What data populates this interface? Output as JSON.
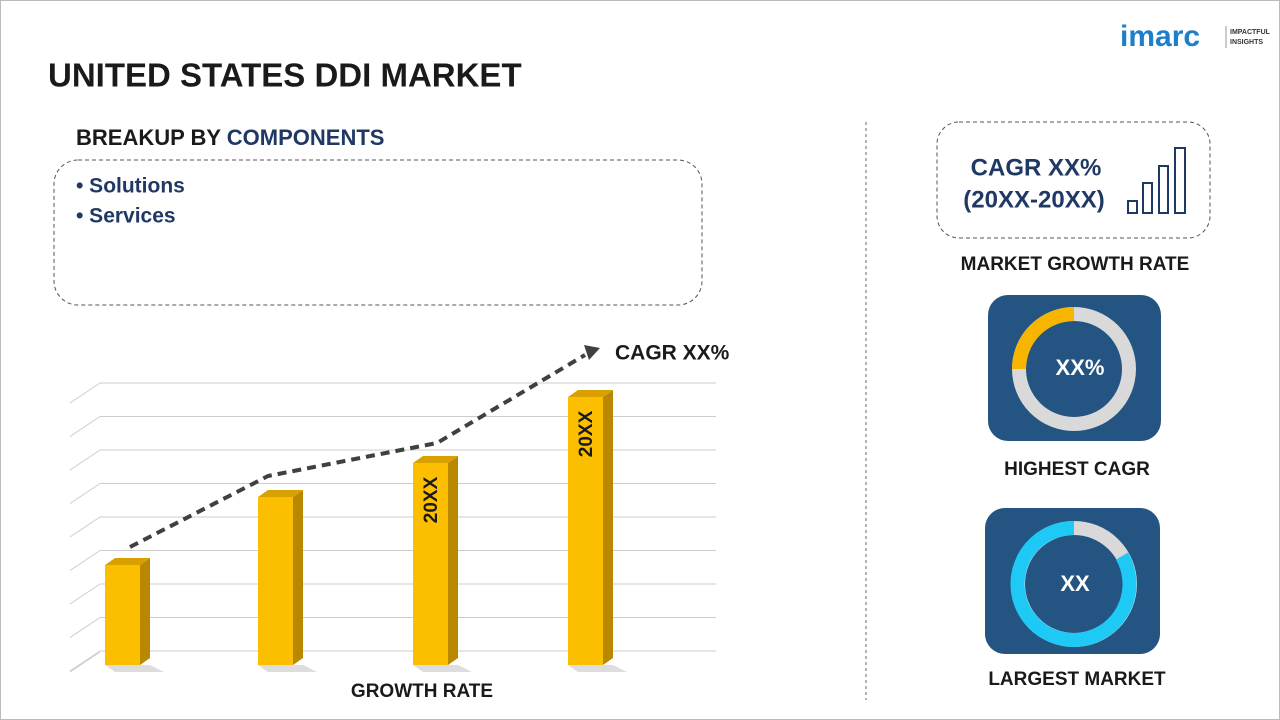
{
  "logo": {
    "name": "imarc",
    "tagline_1": "IMPACTFUL",
    "tagline_2": "INSIGHTS"
  },
  "header": {
    "title": "UNITED STATES DDI MARKET"
  },
  "breakup": {
    "prefix": "BREAKUP BY",
    "segment": "COMPONENTS",
    "items": [
      "• Solutions",
      "• Services"
    ]
  },
  "growth_chart": {
    "cagr": "CAGR XX%",
    "bar_labels": [
      "20XX",
      "20XX"
    ],
    "axis_label": "GROWTH RATE"
  },
  "growth_card": {
    "cagr": "CAGR XX%",
    "period": "(20XX-20XX)",
    "caption": "MARKET GROWTH RATE"
  },
  "highest": {
    "value": "XX%",
    "caption": "HIGHEST CAGR"
  },
  "largest": {
    "value": "XX",
    "caption": "LARGEST MARKET"
  }
}
